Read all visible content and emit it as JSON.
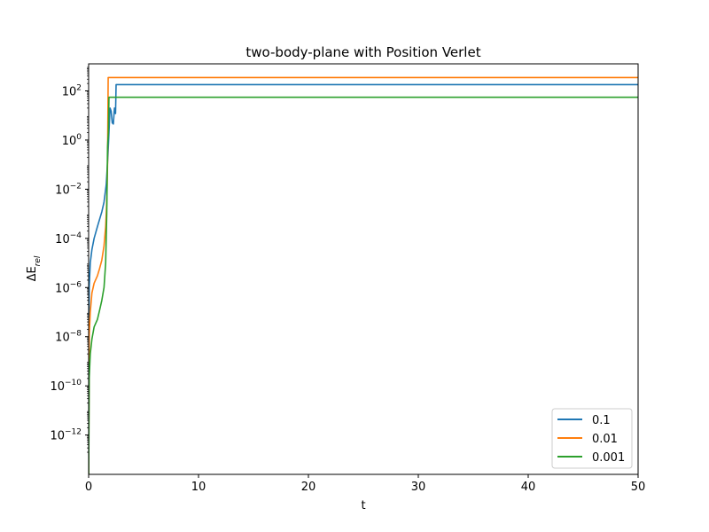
{
  "chart_data": {
    "type": "line",
    "title": "two-body-plane with Position Verlet",
    "xlabel": "t",
    "ylabel": "ΔE_rel",
    "xlim": [
      0,
      50
    ],
    "ylim_exponent": [
      -13.6,
      3.1
    ],
    "yscale": "log",
    "legend_position": "lower-right",
    "x_ticks": [
      0,
      10,
      20,
      30,
      40,
      50
    ],
    "y_ticks": [
      {
        "exp": -12,
        "label": "10^-12"
      },
      {
        "exp": -10,
        "label": "10^-10"
      },
      {
        "exp": -8,
        "label": "10^-8"
      },
      {
        "exp": -6,
        "label": "10^-6"
      },
      {
        "exp": -4,
        "label": "10^-4"
      },
      {
        "exp": -2,
        "label": "10^-2"
      },
      {
        "exp": 0,
        "label": "10^0"
      },
      {
        "exp": 2,
        "label": "10^2"
      }
    ],
    "series": [
      {
        "name": "0.1",
        "color": "#1f77b4",
        "points": [
          [
            0.0,
            1e-14
          ],
          [
            0.05,
            1e-06
          ],
          [
            0.15,
            1e-05
          ],
          [
            0.3,
            3.5e-05
          ],
          [
            0.5,
            0.0001
          ],
          [
            0.8,
            0.0003
          ],
          [
            1.0,
            0.0006
          ],
          [
            1.2,
            0.0012
          ],
          [
            1.4,
            0.003
          ],
          [
            1.6,
            0.015
          ],
          [
            1.75,
            0.2
          ],
          [
            1.85,
            2
          ],
          [
            1.95,
            20
          ],
          [
            2.05,
            15
          ],
          [
            2.15,
            5
          ],
          [
            2.25,
            4.5
          ],
          [
            2.35,
            20
          ],
          [
            2.45,
            12
          ],
          [
            2.5,
            180
          ],
          [
            50,
            180
          ]
        ]
      },
      {
        "name": "0.01",
        "color": "#ff7f0e",
        "points": [
          [
            0.0,
            1e-14
          ],
          [
            0.05,
            1e-08
          ],
          [
            0.15,
            1e-07
          ],
          [
            0.3,
            6e-07
          ],
          [
            0.5,
            1.5e-06
          ],
          [
            0.8,
            3e-06
          ],
          [
            1.0,
            6e-06
          ],
          [
            1.2,
            1.3e-05
          ],
          [
            1.4,
            5e-05
          ],
          [
            1.55,
            0.0003
          ],
          [
            1.65,
            0.003
          ],
          [
            1.72,
            0.1
          ],
          [
            1.78,
            350
          ],
          [
            50,
            350
          ]
        ]
      },
      {
        "name": "0.001",
        "color": "#2ca02c",
        "points": [
          [
            0.0,
            1e-14
          ],
          [
            0.05,
            2e-10
          ],
          [
            0.15,
            2e-09
          ],
          [
            0.3,
            8e-09
          ],
          [
            0.5,
            2.5e-08
          ],
          [
            0.8,
            5e-08
          ],
          [
            1.0,
            1.2e-07
          ],
          [
            1.2,
            3e-07
          ],
          [
            1.4,
            1e-06
          ],
          [
            1.55,
            1e-05
          ],
          [
            1.65,
            0.001
          ],
          [
            1.72,
            0.5
          ],
          [
            1.8,
            2
          ],
          [
            1.85,
            55
          ],
          [
            50,
            55
          ]
        ]
      }
    ]
  }
}
